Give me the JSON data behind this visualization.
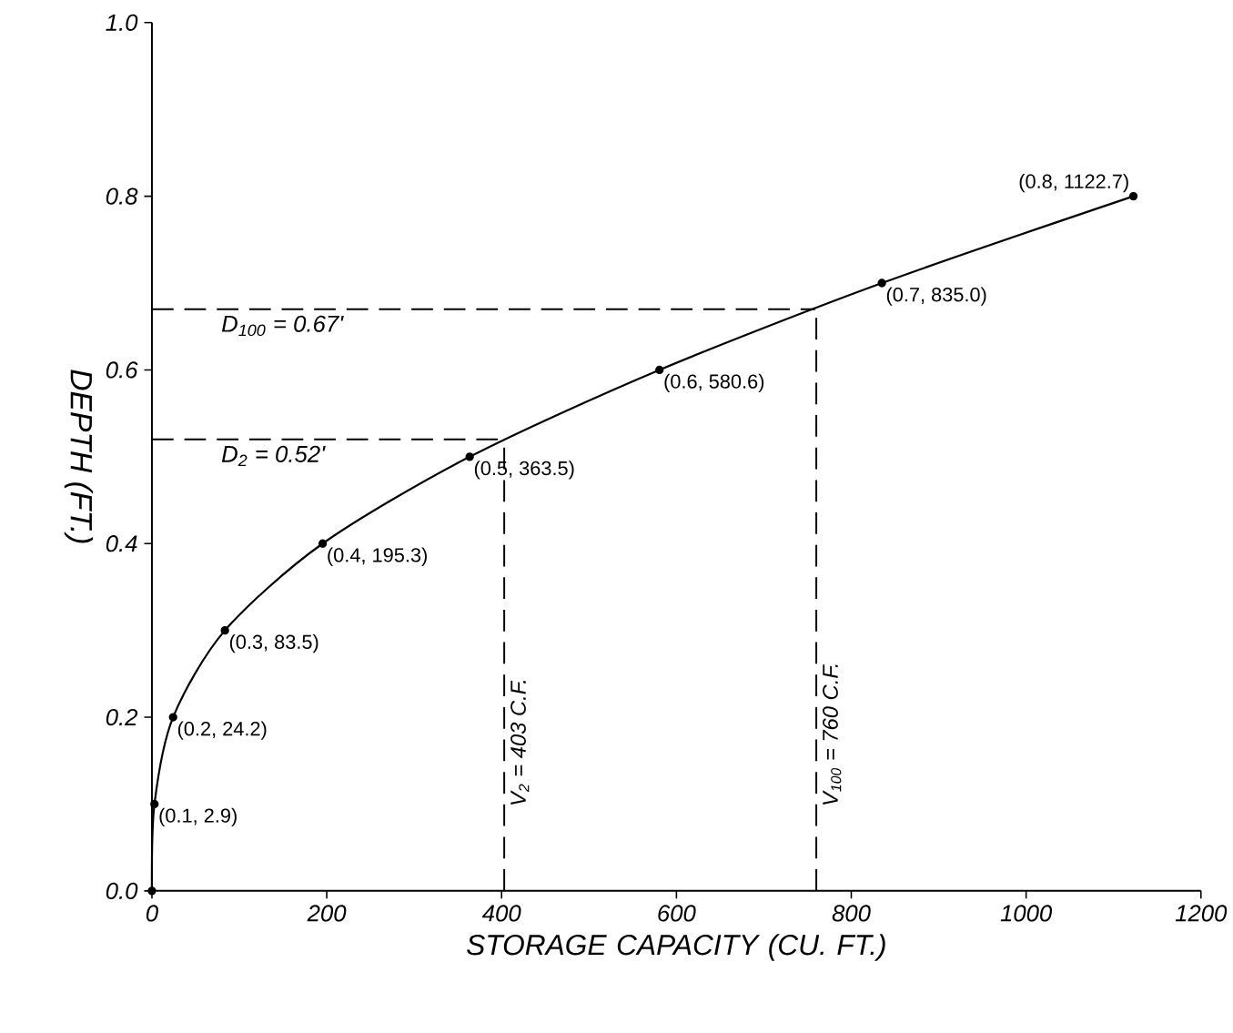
{
  "chart_data": {
    "type": "line",
    "xlabel": "STORAGE CAPACITY (CU. FT.)",
    "ylabel": "DEPTH (FT.)",
    "x": [
      0,
      2.9,
      24.2,
      83.5,
      195.3,
      363.5,
      580.6,
      835.0,
      1122.7
    ],
    "series": [
      {
        "color": "#000000",
        "values": [
          0,
          0.1,
          0.2,
          0.3,
          0.4,
          0.5,
          0.6,
          0.7,
          0.8
        ],
        "value_labels": [
          null,
          "(0.1, 2.9)",
          "(0.2, 24.2)",
          "(0.3, 83.5)",
          "(0.4, 195.3)",
          "(0.5, 363.5)",
          "(0.6, 580.6)",
          "(0.7, 835.0)",
          "(0.8, 1122.7)"
        ]
      }
    ],
    "xlim": [
      0,
      1200
    ],
    "xticks": [
      0,
      200,
      400,
      600,
      800,
      1000,
      1200
    ],
    "ylim": [
      0,
      1.0
    ],
    "yticks": [
      {
        "value": 0,
        "label": "0.0"
      },
      0.2,
      0.4,
      0.6,
      0.8,
      {
        "value": 1.0,
        "label": "1.0"
      }
    ],
    "ref_lines": [
      {
        "axis": "y",
        "value": 0.67,
        "label": "D$_{100}$ = 0.67'",
        "color": "#000000",
        "line_style": "dashed"
      },
      {
        "axis": "y",
        "value": 0.52,
        "label": "D$_{2}$ = 0.52'",
        "color": "#000000",
        "line_style": "dashed"
      },
      {
        "axis": "x",
        "value": 403,
        "label": "V$_{2}$ = 403 C.F.",
        "color": "#000000",
        "line_style": "dashed"
      },
      {
        "axis": "x",
        "value": 760,
        "label": "V$_{100}$ = 760 C.F.",
        "color": "#000000",
        "line_style": "dashed"
      }
    ],
    "marker": "circle",
    "line_style": "solid"
  }
}
